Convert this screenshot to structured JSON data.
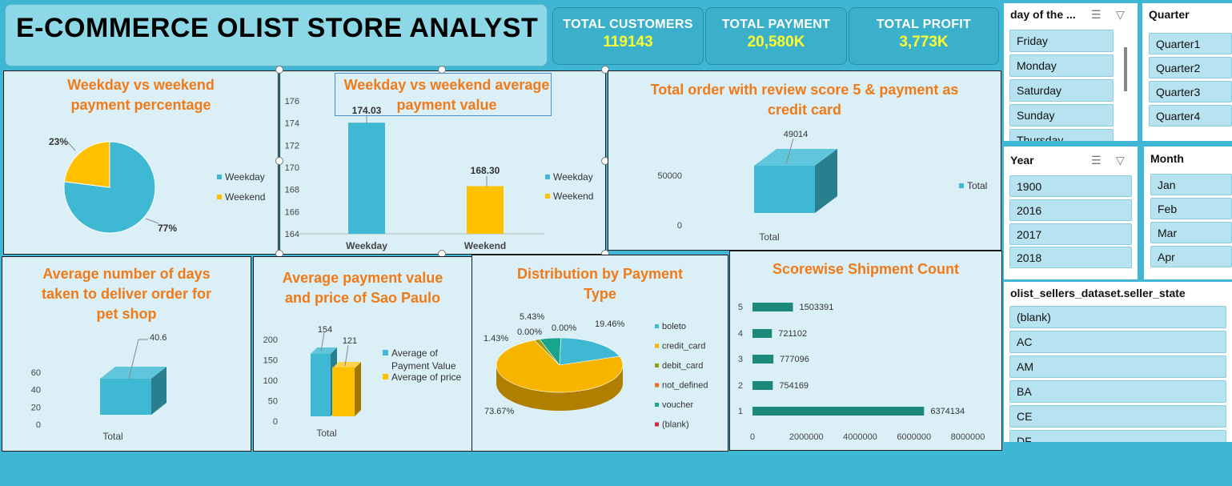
{
  "header": {
    "title": "E-COMMERCE OLIST STORE ANALYST"
  },
  "kpis": [
    {
      "label": "TOTAL CUSTOMERS",
      "value": "119143"
    },
    {
      "label": "TOTAL PAYMENT",
      "value": "20,580K"
    },
    {
      "label": "TOTAL PROFIT",
      "value": "3,773K"
    }
  ],
  "slicers": {
    "day": {
      "title": "day of the ...",
      "items": [
        "Friday",
        "Monday",
        "Saturday",
        "Sunday",
        "Thursday"
      ]
    },
    "quarter": {
      "title": "Quarter",
      "items": [
        "Quarter1",
        "Quarter2",
        "Quarter3",
        "Quarter4"
      ]
    },
    "year": {
      "title": "Year",
      "items": [
        "1900",
        "2016",
        "2017",
        "2018"
      ]
    },
    "month": {
      "title": "Month",
      "items": [
        "Jan",
        "Feb",
        "Mar",
        "Apr"
      ]
    },
    "state": {
      "title": "olist_sellers_dataset.seller_state",
      "items": [
        "(blank)",
        "AC",
        "AM",
        "BA",
        "CE",
        "DF"
      ]
    }
  },
  "colors": {
    "blue": "#3fb9d3",
    "orange": "#ffc000",
    "teal": "#1b8a7a",
    "title_orange": "#f07a17",
    "panel": "#daf0f6"
  },
  "chart_data": [
    {
      "type": "pie",
      "title": "Weekday vs weekend payment percentage",
      "labels": [
        "Weekday",
        "Weekend"
      ],
      "values": [
        77,
        23
      ],
      "value_labels": [
        "77%",
        "23%"
      ],
      "legend": "right"
    },
    {
      "type": "bar",
      "title": "Weekday vs weekend average payment value",
      "categories": [
        "Weekday",
        "Weekend"
      ],
      "values": [
        174.03,
        168.3
      ],
      "value_labels": [
        "174.03",
        "168.30"
      ],
      "ylim": [
        164,
        176
      ],
      "yticks": [
        "164",
        "166",
        "168",
        "170",
        "172",
        "174",
        "176"
      ],
      "legend_entries": [
        "Weekday",
        "Weekend"
      ],
      "legend": "right"
    },
    {
      "type": "bar",
      "title": "Total order with review score 5 & payment as credit card",
      "categories": [
        "Total"
      ],
      "values": [
        49014
      ],
      "value_labels": [
        "49014"
      ],
      "yticks": [
        "0",
        "50000"
      ],
      "legend_entries": [
        "Total"
      ],
      "legend": "right"
    },
    {
      "type": "bar",
      "title": "Average number of days taken to deliver order for pet shop",
      "categories": [
        "Total"
      ],
      "values": [
        40.6
      ],
      "value_labels": [
        "40.6"
      ],
      "ylim": [
        0,
        60
      ],
      "yticks": [
        "0",
        "20",
        "40",
        "60"
      ]
    },
    {
      "type": "bar",
      "title": "Average payment value and price of Sao Paulo",
      "categories": [
        "Total"
      ],
      "series": [
        {
          "name": "Average of Payment Value",
          "values": [
            154
          ]
        },
        {
          "name": "Average of price",
          "values": [
            121
          ]
        }
      ],
      "value_labels": [
        "154",
        "121"
      ],
      "ylim": [
        0,
        200
      ],
      "yticks": [
        "0",
        "50",
        "100",
        "150",
        "200"
      ],
      "legend": "right"
    },
    {
      "type": "pie",
      "title": "Distribution by Payment Type",
      "labels": [
        "boleto",
        "credit_card",
        "debit_card",
        "not_defined",
        "voucher",
        "(blank)"
      ],
      "values": [
        19.46,
        73.67,
        1.43,
        0.0,
        5.43,
        0.0
      ],
      "value_labels": [
        "19.46%",
        "73.67%",
        "1.43%",
        "0.00%",
        "5.43%",
        "0.00%"
      ],
      "legend": "right"
    },
    {
      "type": "bar",
      "title": "Scorewise Shipment Count",
      "orientation": "horizontal",
      "categories": [
        "1",
        "2",
        "3",
        "4",
        "5"
      ],
      "values": [
        6374134,
        754169,
        777096,
        721102,
        1503391
      ],
      "value_labels": [
        "6374134",
        "754169",
        "777096",
        "721102",
        "1503391"
      ],
      "xlim": [
        0,
        8000000
      ],
      "xticks": [
        "0",
        "2000000",
        "4000000",
        "6000000",
        "8000000"
      ]
    }
  ]
}
